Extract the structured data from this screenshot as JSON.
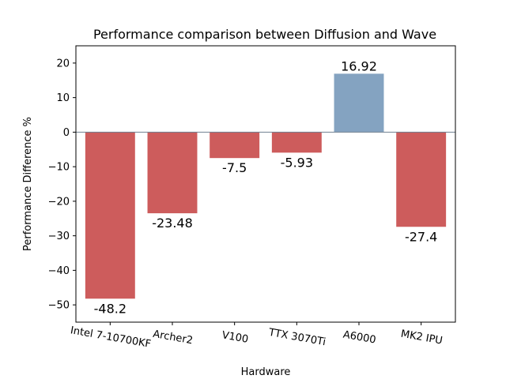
{
  "chart_data": {
    "type": "bar",
    "title": "Performance comparison between Diffusion and Wave",
    "xlabel": "Hardware",
    "ylabel": "Performance Difference %",
    "categories": [
      "Intel 7-10700KF",
      "Archer2",
      "V100",
      "TTX 3070Ti",
      "A6000",
      "MK2 IPU"
    ],
    "values": [
      -48.2,
      -23.48,
      -7.5,
      -5.93,
      16.92,
      -27.4
    ],
    "value_labels": [
      "-48.2",
      "-23.48",
      "-7.5",
      "-5.93",
      "16.92",
      "-27.4"
    ],
    "ylim": [
      -55,
      25
    ],
    "yticks": [
      -50,
      -40,
      -30,
      -20,
      -10,
      0,
      10,
      20
    ],
    "ytick_labels": [
      "−50",
      "−40",
      "−30",
      "−20",
      "−10",
      "0",
      "10",
      "20"
    ],
    "grid": false,
    "colors": {
      "negative": "#cd5c5c",
      "positive": "#84a3c1",
      "zero_line": "#708090"
    }
  }
}
